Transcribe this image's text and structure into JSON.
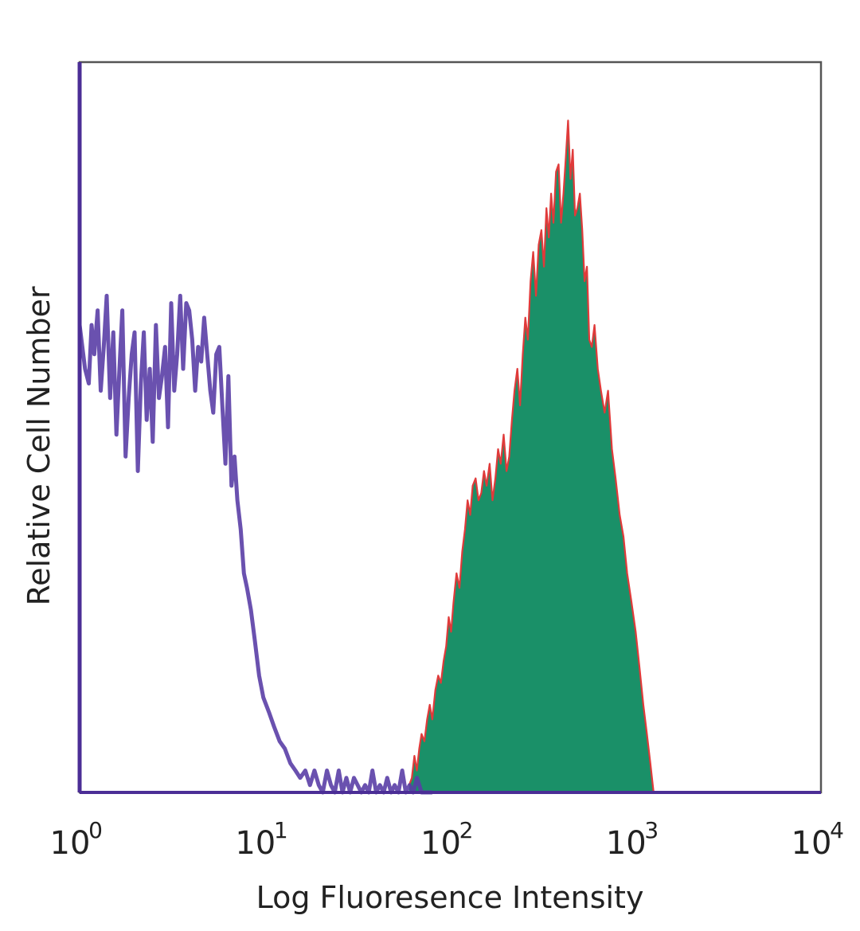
{
  "chart_data": {
    "type": "area",
    "xlabel": "Log Fluoresence Intensity",
    "ylabel": "Relative Cell Number",
    "x_scale": "log",
    "xlim": [
      1,
      10000
    ],
    "ylim": [
      0,
      100
    ],
    "grid": false,
    "x_ticks": [
      {
        "base": "10",
        "exp": "0",
        "value": 1
      },
      {
        "base": "10",
        "exp": "1",
        "value": 10
      },
      {
        "base": "10",
        "exp": "2",
        "value": 100
      },
      {
        "base": "10",
        "exp": "3",
        "value": 1000
      },
      {
        "base": "10",
        "exp": "4",
        "value": 10000
      }
    ],
    "series": [
      {
        "style": "outline",
        "color": "#5a3ea6",
        "x": [
          1.0,
          1.07,
          1.12,
          1.16,
          1.2,
          1.25,
          1.3,
          1.35,
          1.4,
          1.46,
          1.52,
          1.58,
          1.64,
          1.7,
          1.77,
          1.84,
          1.91,
          1.98,
          2.06,
          2.14,
          2.22,
          2.3,
          2.39,
          2.48,
          2.58,
          2.68,
          2.78,
          2.89,
          3.0,
          3.12,
          3.24,
          3.36,
          3.49,
          3.62,
          3.76,
          3.9,
          4.05,
          4.2,
          4.36,
          4.53,
          4.7,
          4.88,
          5.07,
          5.26,
          5.46,
          5.67,
          5.89,
          6.12,
          6.35,
          6.6,
          6.85,
          7.1,
          7.4,
          7.7,
          8.0,
          8.4,
          8.8,
          9.3,
          9.8,
          10.5,
          11.2,
          12.0,
          12.8,
          13.7,
          14.6,
          15.5,
          16.5,
          17.5,
          18.5,
          19.5,
          20.5,
          21.6,
          22.7,
          23.8,
          25.0,
          26.2,
          27.5,
          28.8,
          30.2,
          31.6,
          33.1,
          34.7,
          36.3,
          38.0,
          39.8,
          41.7,
          43.7,
          45.7,
          47.9,
          50.1,
          52.5,
          55.0,
          57.5,
          60.3,
          63.0,
          66.1,
          70.0,
          80.0
        ],
        "y": [
          64,
          58,
          56,
          64,
          60,
          66,
          55,
          61,
          68,
          54,
          63,
          49,
          58,
          66,
          46,
          54,
          60,
          63,
          44,
          56,
          63,
          51,
          58,
          48,
          64,
          54,
          57,
          61,
          50,
          67,
          55,
          60,
          68,
          58,
          67,
          66,
          62,
          55,
          61,
          59,
          65,
          60,
          55,
          52,
          60,
          61,
          53,
          45,
          57,
          42,
          46,
          40,
          36,
          30,
          28,
          25,
          21,
          16,
          13,
          11,
          9,
          7,
          6,
          4,
          3,
          2,
          3,
          1,
          3,
          1,
          0,
          3,
          1,
          0,
          3,
          0,
          2,
          0,
          2,
          1,
          0,
          1,
          0,
          3,
          0,
          1,
          0,
          2,
          0,
          1,
          0,
          3,
          0,
          1,
          0,
          2,
          0,
          0
        ]
      },
      {
        "style": "filled",
        "color": "#1a9068",
        "edge_color": "#e03a3a",
        "x": [
          60.0,
          62.0,
          64.0,
          66.0,
          68.0,
          70.0,
          72.5,
          75.0,
          77.5,
          80.0,
          83.0,
          86.0,
          89.0,
          92.0,
          95.0,
          98.0,
          101.0,
          104.0,
          108.0,
          112.0,
          116.0,
          120.0,
          124.0,
          128.0,
          132.0,
          137.0,
          142.0,
          147.0,
          152.0,
          157.0,
          163.0,
          169.0,
          175.0,
          181.0,
          187.0,
          194.0,
          201.0,
          208.0,
          215.0,
          222.0,
          230.0,
          238.0,
          246.0,
          254.0,
          262.0,
          271.0,
          280.0,
          290.0,
          300.0,
          310.0,
          320.0,
          330.0,
          340.0,
          350.0,
          360.0,
          372.0,
          384.0,
          396.0,
          408.0,
          420.0,
          432.0,
          445.0,
          458.0,
          471.0,
          485.0,
          500.0,
          515.0,
          530.0,
          546.0,
          562.0,
          580.0,
          600.0,
          625.0,
          650.0,
          680.0,
          710.0,
          745.0,
          780.0,
          820.0,
          860.0,
          900.0,
          950.0,
          1000.0,
          1050.0,
          1100.0,
          1150.0,
          1200.0,
          1250.0
        ],
        "y": [
          1,
          2,
          5,
          3,
          6,
          8,
          7,
          10,
          12,
          10,
          14,
          16,
          15,
          18,
          20,
          24,
          22,
          26,
          30,
          28,
          33,
          36,
          40,
          38,
          42,
          43,
          40,
          41,
          44,
          42,
          45,
          40,
          43,
          47,
          45,
          49,
          44,
          46,
          51,
          55,
          58,
          53,
          60,
          65,
          62,
          70,
          74,
          68,
          75,
          77,
          72,
          80,
          76,
          82,
          78,
          85,
          86,
          78,
          82,
          87,
          92,
          84,
          88,
          79,
          80,
          82,
          77,
          70,
          72,
          62,
          61,
          64,
          58,
          55,
          52,
          55,
          47,
          43,
          38,
          35,
          30,
          26,
          22,
          17,
          12,
          8,
          4,
          0
        ]
      }
    ]
  }
}
